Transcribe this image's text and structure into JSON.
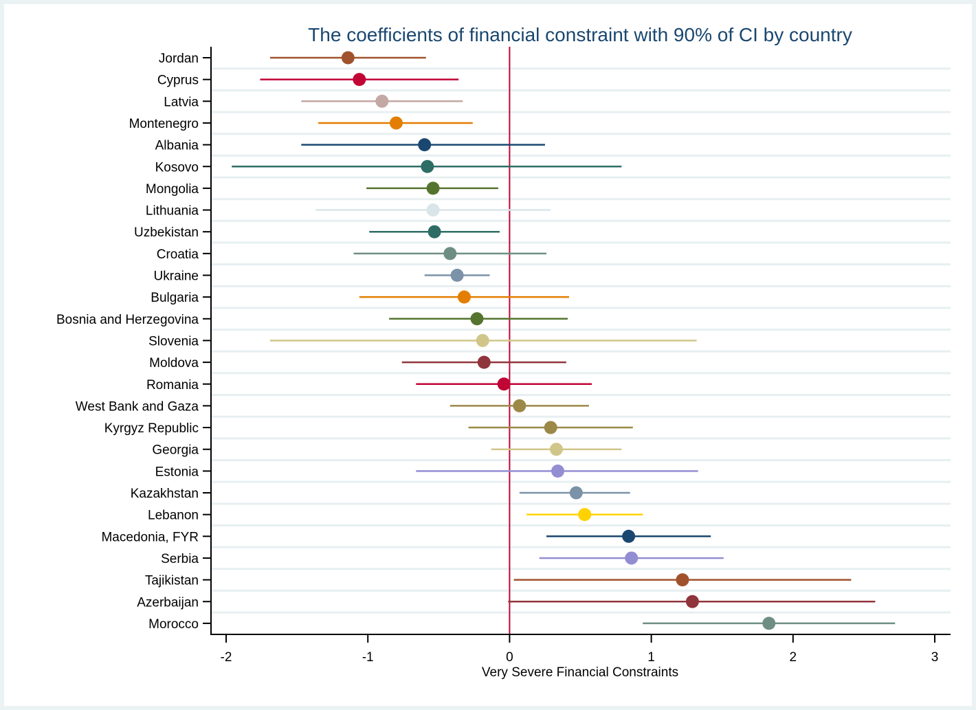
{
  "chart_data": {
    "type": "scatter",
    "title": "The coefficients of financial constraint with 90% of CI by country",
    "xlabel": "Very Severe Financial Constraints",
    "ylabel": "",
    "xlim": [
      -2.1,
      3.1
    ],
    "xticks": [
      -2,
      -1,
      0,
      1,
      2,
      3
    ],
    "reference_line": {
      "x": 0,
      "color": "#c10534"
    },
    "grid": true,
    "rows": [
      {
        "country": "Jordan",
        "estimate": -1.14,
        "lower": -1.69,
        "upper": -0.59,
        "color": "#a0522d"
      },
      {
        "country": "Cyprus",
        "estimate": -1.06,
        "lower": -1.76,
        "upper": -0.36,
        "color": "#c10534"
      },
      {
        "country": "Latvia",
        "estimate": -0.9,
        "lower": -1.47,
        "upper": -0.33,
        "color": "#c4a8a4"
      },
      {
        "country": "Montenegro",
        "estimate": -0.8,
        "lower": -1.35,
        "upper": -0.26,
        "color": "#e37e00"
      },
      {
        "country": "Albania",
        "estimate": -0.6,
        "lower": -1.47,
        "upper": 0.25,
        "color": "#1a476f"
      },
      {
        "country": "Kosovo",
        "estimate": -0.58,
        "lower": -1.96,
        "upper": 0.79,
        "color": "#2d6d66"
      },
      {
        "country": "Mongolia",
        "estimate": -0.54,
        "lower": -1.01,
        "upper": -0.08,
        "color": "#55752f"
      },
      {
        "country": "Lithuania",
        "estimate": -0.54,
        "lower": -1.37,
        "upper": 0.29,
        "color": "#dae5ea"
      },
      {
        "country": "Uzbekistan",
        "estimate": -0.53,
        "lower": -0.99,
        "upper": -0.07,
        "color": "#2d6d66"
      },
      {
        "country": "Croatia",
        "estimate": -0.42,
        "lower": -1.1,
        "upper": 0.26,
        "color": "#6e8e84"
      },
      {
        "country": "Ukraine",
        "estimate": -0.37,
        "lower": -0.6,
        "upper": -0.14,
        "color": "#7b92a8"
      },
      {
        "country": "Bulgaria",
        "estimate": -0.32,
        "lower": -1.06,
        "upper": 0.42,
        "color": "#e37e00"
      },
      {
        "country": "Bosnia and Herzegovina",
        "estimate": -0.23,
        "lower": -0.85,
        "upper": 0.41,
        "color": "#55752f"
      },
      {
        "country": "Slovenia",
        "estimate": -0.19,
        "lower": -1.69,
        "upper": 1.32,
        "color": "#d1c68a"
      },
      {
        "country": "Moldova",
        "estimate": -0.18,
        "lower": -0.76,
        "upper": 0.4,
        "color": "#90353b"
      },
      {
        "country": "Romania",
        "estimate": -0.04,
        "lower": -0.66,
        "upper": 0.58,
        "color": "#c10534"
      },
      {
        "country": "West Bank and Gaza",
        "estimate": 0.07,
        "lower": -0.42,
        "upper": 0.56,
        "color": "#9c8847"
      },
      {
        "country": "Kyrgyz Republic",
        "estimate": 0.29,
        "lower": -0.29,
        "upper": 0.87,
        "color": "#9c8847"
      },
      {
        "country": "Georgia",
        "estimate": 0.33,
        "lower": -0.13,
        "upper": 0.79,
        "color": "#d1c68a"
      },
      {
        "country": "Estonia",
        "estimate": 0.34,
        "lower": -0.66,
        "upper": 1.33,
        "color": "#938dd2"
      },
      {
        "country": "Kazakhstan",
        "estimate": 0.47,
        "lower": 0.07,
        "upper": 0.85,
        "color": "#7b92a8"
      },
      {
        "country": "Lebanon",
        "estimate": 0.53,
        "lower": 0.12,
        "upper": 0.94,
        "color": "#ffd200"
      },
      {
        "country": "Macedonia, FYR",
        "estimate": 0.84,
        "lower": 0.26,
        "upper": 1.42,
        "color": "#1a476f"
      },
      {
        "country": "Serbia",
        "estimate": 0.86,
        "lower": 0.21,
        "upper": 1.51,
        "color": "#938dd2"
      },
      {
        "country": "Tajikistan",
        "estimate": 1.22,
        "lower": 0.03,
        "upper": 2.41,
        "color": "#a0522d"
      },
      {
        "country": "Azerbaijan",
        "estimate": 1.29,
        "lower": -0.01,
        "upper": 2.58,
        "color": "#90353b"
      },
      {
        "country": "Morocco",
        "estimate": 1.83,
        "lower": 0.94,
        "upper": 2.72,
        "color": "#6e8e84"
      }
    ]
  }
}
